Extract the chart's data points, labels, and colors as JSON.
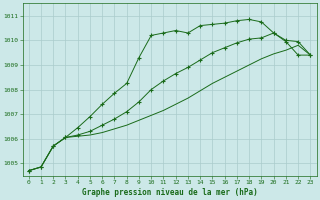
{
  "xlabel": "Graphe pression niveau de la mer (hPa)",
  "background_color": "#cce8e8",
  "grid_color": "#aacccc",
  "line_color": "#1a6b1a",
  "xlim": [
    -0.5,
    23.5
  ],
  "ylim": [
    1004.5,
    1011.5
  ],
  "yticks": [
    1005,
    1006,
    1007,
    1008,
    1009,
    1010,
    1011
  ],
  "xticks": [
    0,
    1,
    2,
    3,
    4,
    5,
    6,
    7,
    8,
    9,
    10,
    11,
    12,
    13,
    14,
    15,
    16,
    17,
    18,
    19,
    20,
    21,
    22,
    23
  ],
  "series": [
    {
      "x": [
        0,
        1,
        2,
        3,
        4,
        5,
        6,
        7,
        8,
        9,
        10,
        11,
        12,
        13,
        14,
        15,
        16,
        17,
        18,
        19,
        20,
        21,
        22,
        23
      ],
      "y": [
        1004.7,
        1004.85,
        1005.7,
        1006.05,
        1006.45,
        1006.9,
        1007.4,
        1007.85,
        1008.25,
        1009.3,
        1010.2,
        1010.3,
        1010.4,
        1010.3,
        1010.6,
        1010.65,
        1010.7,
        1010.8,
        1010.85,
        1010.75,
        1010.3,
        1009.95,
        1009.4,
        1009.4
      ],
      "marker": true
    },
    {
      "x": [
        0,
        1,
        2,
        3,
        4,
        5,
        6,
        7,
        8,
        9,
        10,
        11,
        12,
        13,
        14,
        15,
        16,
        17,
        18,
        19,
        20,
        21,
        22,
        23
      ],
      "y": [
        1004.7,
        1004.85,
        1005.7,
        1006.05,
        1006.15,
        1006.3,
        1006.55,
        1006.8,
        1007.1,
        1007.5,
        1008.0,
        1008.35,
        1008.65,
        1008.9,
        1009.2,
        1009.5,
        1009.7,
        1009.9,
        1010.05,
        1010.1,
        1010.3,
        1010.0,
        1009.95,
        1009.4
      ],
      "marker": true
    },
    {
      "x": [
        0,
        1,
        2,
        3,
        4,
        5,
        6,
        7,
        8,
        9,
        10,
        11,
        12,
        13,
        14,
        15,
        16,
        17,
        18,
        19,
        20,
        21,
        22,
        23
      ],
      "y": [
        1004.7,
        1004.85,
        1005.7,
        1006.05,
        1006.1,
        1006.15,
        1006.25,
        1006.4,
        1006.55,
        1006.75,
        1006.95,
        1007.15,
        1007.4,
        1007.65,
        1007.95,
        1008.25,
        1008.5,
        1008.75,
        1009.0,
        1009.25,
        1009.45,
        1009.6,
        1009.8,
        1009.4
      ],
      "marker": false
    }
  ]
}
